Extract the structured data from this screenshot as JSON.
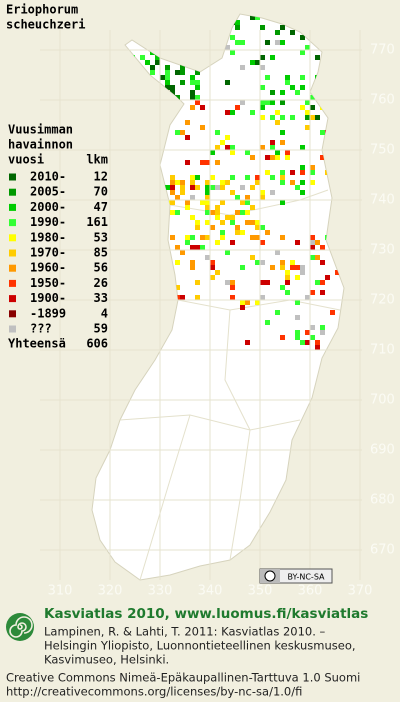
{
  "title": [
    "Eriophorum",
    "scheuchzeri"
  ],
  "legend": {
    "title": [
      "Vuusimman",
      "havainnon",
      "vuosi"
    ],
    "count_header": "lkm",
    "items": [
      {
        "label": "2010-",
        "count": 12,
        "color": "#006600"
      },
      {
        "label": "2005-",
        "count": 70,
        "color": "#009900"
      },
      {
        "label": "2000-",
        "count": 47,
        "color": "#00cc00"
      },
      {
        "label": "1990-",
        "count": 161,
        "color": "#33ff33"
      },
      {
        "label": "1980-",
        "count": 53,
        "color": "#ffff00"
      },
      {
        "label": "1970-",
        "count": 85,
        "color": "#ffcc00"
      },
      {
        "label": "1960-",
        "count": 56,
        "color": "#ff9900"
      },
      {
        "label": "1950-",
        "count": 26,
        "color": "#ff3300"
      },
      {
        "label": "1900-",
        "count": 33,
        "color": "#cc0000"
      },
      {
        "label": "-1899",
        "count": 4,
        "color": "#880000"
      },
      {
        "label": "???",
        "count": 59,
        "color": "#c0c0c0"
      }
    ],
    "total_label": "Yhteensä",
    "total": 606
  },
  "grid": {
    "x_labels": [
      310,
      320,
      330,
      340,
      350,
      360,
      370
    ],
    "y_labels": [
      770,
      760,
      750,
      740,
      730,
      720,
      710,
      700,
      690,
      680,
      670
    ]
  },
  "footer": {
    "site": "Kasviatlas 2010, www.luomus.fi/kasviatlas",
    "citation": [
      "Lampinen, R. & Lahti, T. 2011: Kasviatlas 2010. –",
      "Helsingin Yliopisto, Luonnontieteellinen keskusmuseo,",
      "Kasvimuseo, Helsinki."
    ],
    "license": [
      "Creative Commons Nimeä-Epäkaupallinen-Tarttuva 1.0 Suomi",
      "http://creativecommons.org/licenses/by-nc-sa/1.0/fi"
    ],
    "badge": "BY-NC-SA"
  }
}
